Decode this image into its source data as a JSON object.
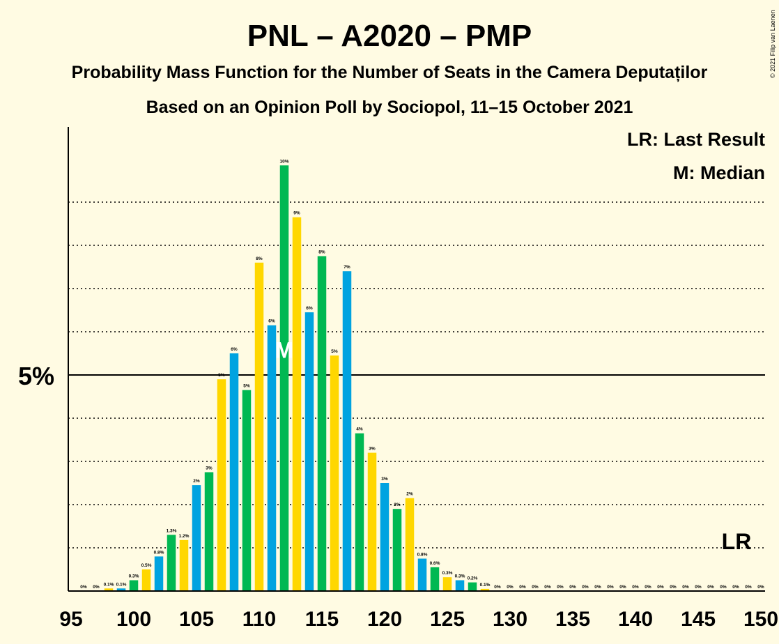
{
  "header": {
    "title": "PNL – A2020 – PMP",
    "subtitle_1": "Probability Mass Function for the Number of Seats in the Camera Deputaților",
    "subtitle_2": "Based on an Opinion Poll by Sociopol, 11–15 October 2021",
    "copyright": "© 2021 Filip van Laenen"
  },
  "legend": {
    "last_result": "LR: Last Result",
    "median": "M: Median",
    "placement": "top-right"
  },
  "markers": {
    "median_label": "M",
    "median_seat": 112,
    "last_result_label": "LR",
    "last_result_seat": 148
  },
  "colors": {
    "background": "#fffbe3",
    "blue": "#00a3e0",
    "green": "#00b852",
    "yellow": "#ffd700"
  },
  "chart_data": {
    "type": "bar",
    "title": "PNL – A2020 – PMP",
    "xlabel": "",
    "ylabel": "",
    "xlim": [
      95,
      150
    ],
    "ylim": [
      0,
      10.7
    ],
    "x_ticks": [
      95,
      100,
      105,
      110,
      115,
      120,
      125,
      130,
      135,
      140,
      145,
      150
    ],
    "y_ticks": [
      {
        "value": 5,
        "label": "5%"
      }
    ],
    "grid_dotted": [
      1,
      2,
      3,
      4,
      6,
      7,
      8,
      9
    ],
    "grid_solid": [
      5
    ],
    "color_cycle": [
      "#00a3e0",
      "#00b852",
      "#ffd700"
    ],
    "series": [
      {
        "x": [
          96,
          97,
          98,
          99,
          100,
          101,
          102,
          103,
          104,
          105,
          106,
          107,
          108,
          109,
          110,
          111,
          112,
          113,
          114,
          115,
          116,
          117,
          118,
          119,
          120,
          121,
          122,
          123,
          124,
          125,
          126,
          127,
          128,
          129,
          130,
          131,
          132,
          133,
          134,
          135,
          136,
          137,
          138,
          139,
          140,
          141,
          142,
          143,
          144,
          145,
          146,
          147,
          148,
          149,
          150
        ],
        "values": [
          0,
          0,
          0.06,
          0.06,
          0.25,
          0.5,
          0.8,
          1.3,
          1.18,
          2.45,
          2.75,
          4.9,
          5.5,
          4.65,
          7.6,
          6.15,
          9.85,
          8.65,
          6.45,
          7.75,
          5.45,
          7.4,
          3.65,
          3.2,
          2.5,
          1.9,
          2.15,
          0.75,
          0.55,
          0.32,
          0.25,
          0.2,
          0.05,
          0,
          0,
          0,
          0,
          0,
          0,
          0,
          0,
          0,
          0,
          0,
          0,
          0,
          0,
          0,
          0,
          0,
          0,
          0,
          0,
          0,
          0
        ],
        "labels": [
          "0%",
          "0%",
          "0.1%",
          "0.1%",
          "0.3%",
          "0.5%",
          "0.8%",
          "1.3%",
          "1.2%",
          "2%",
          "3%",
          "5%",
          "6%",
          "5%",
          "8%",
          "6%",
          "10%",
          "9%",
          "6%",
          "8%",
          "5%",
          "7%",
          "4%",
          "3%",
          "3%",
          "2%",
          "2%",
          "0.8%",
          "0.6%",
          "0.3%",
          "0.3%",
          "0.2%",
          "0.1%",
          "0%",
          "0%",
          "0%",
          "0%",
          "0%",
          "0%",
          "0%",
          "0%",
          "0%",
          "0%",
          "0%",
          "0%",
          "0%",
          "0%",
          "0%",
          "0%",
          "0%",
          "0%",
          "0%",
          "0%",
          "0%",
          "0%"
        ]
      }
    ]
  }
}
